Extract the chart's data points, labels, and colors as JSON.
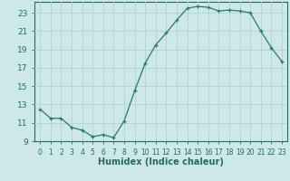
{
  "x": [
    0,
    1,
    2,
    3,
    4,
    5,
    6,
    7,
    8,
    9,
    10,
    11,
    12,
    13,
    14,
    15,
    16,
    17,
    18,
    19,
    20,
    21,
    22,
    23
  ],
  "y": [
    12.5,
    11.5,
    11.5,
    10.5,
    10.2,
    9.5,
    9.7,
    9.4,
    11.2,
    14.5,
    17.5,
    19.5,
    20.8,
    22.2,
    23.5,
    23.7,
    23.6,
    23.2,
    23.3,
    23.2,
    23.0,
    21.0,
    19.2,
    17.7
  ],
  "xlabel": "Humidex (Indice chaleur)",
  "bg_color": "#cce8e8",
  "grid_color": "#b8d4d4",
  "line_color": "#2a7a6a",
  "marker_color": "#2a7a6a",
  "xlim": [
    -0.5,
    23.5
  ],
  "ylim": [
    9,
    24.2
  ],
  "yticks": [
    9,
    11,
    13,
    15,
    17,
    19,
    21,
    23
  ],
  "xticks": [
    0,
    1,
    2,
    3,
    4,
    5,
    6,
    7,
    8,
    9,
    10,
    11,
    12,
    13,
    14,
    15,
    16,
    17,
    18,
    19,
    20,
    21,
    22,
    23
  ],
  "tick_color": "#2a6a5a",
  "label_fontsize": 7,
  "tick_fontsize": 5.5,
  "ytick_fontsize": 6.5
}
